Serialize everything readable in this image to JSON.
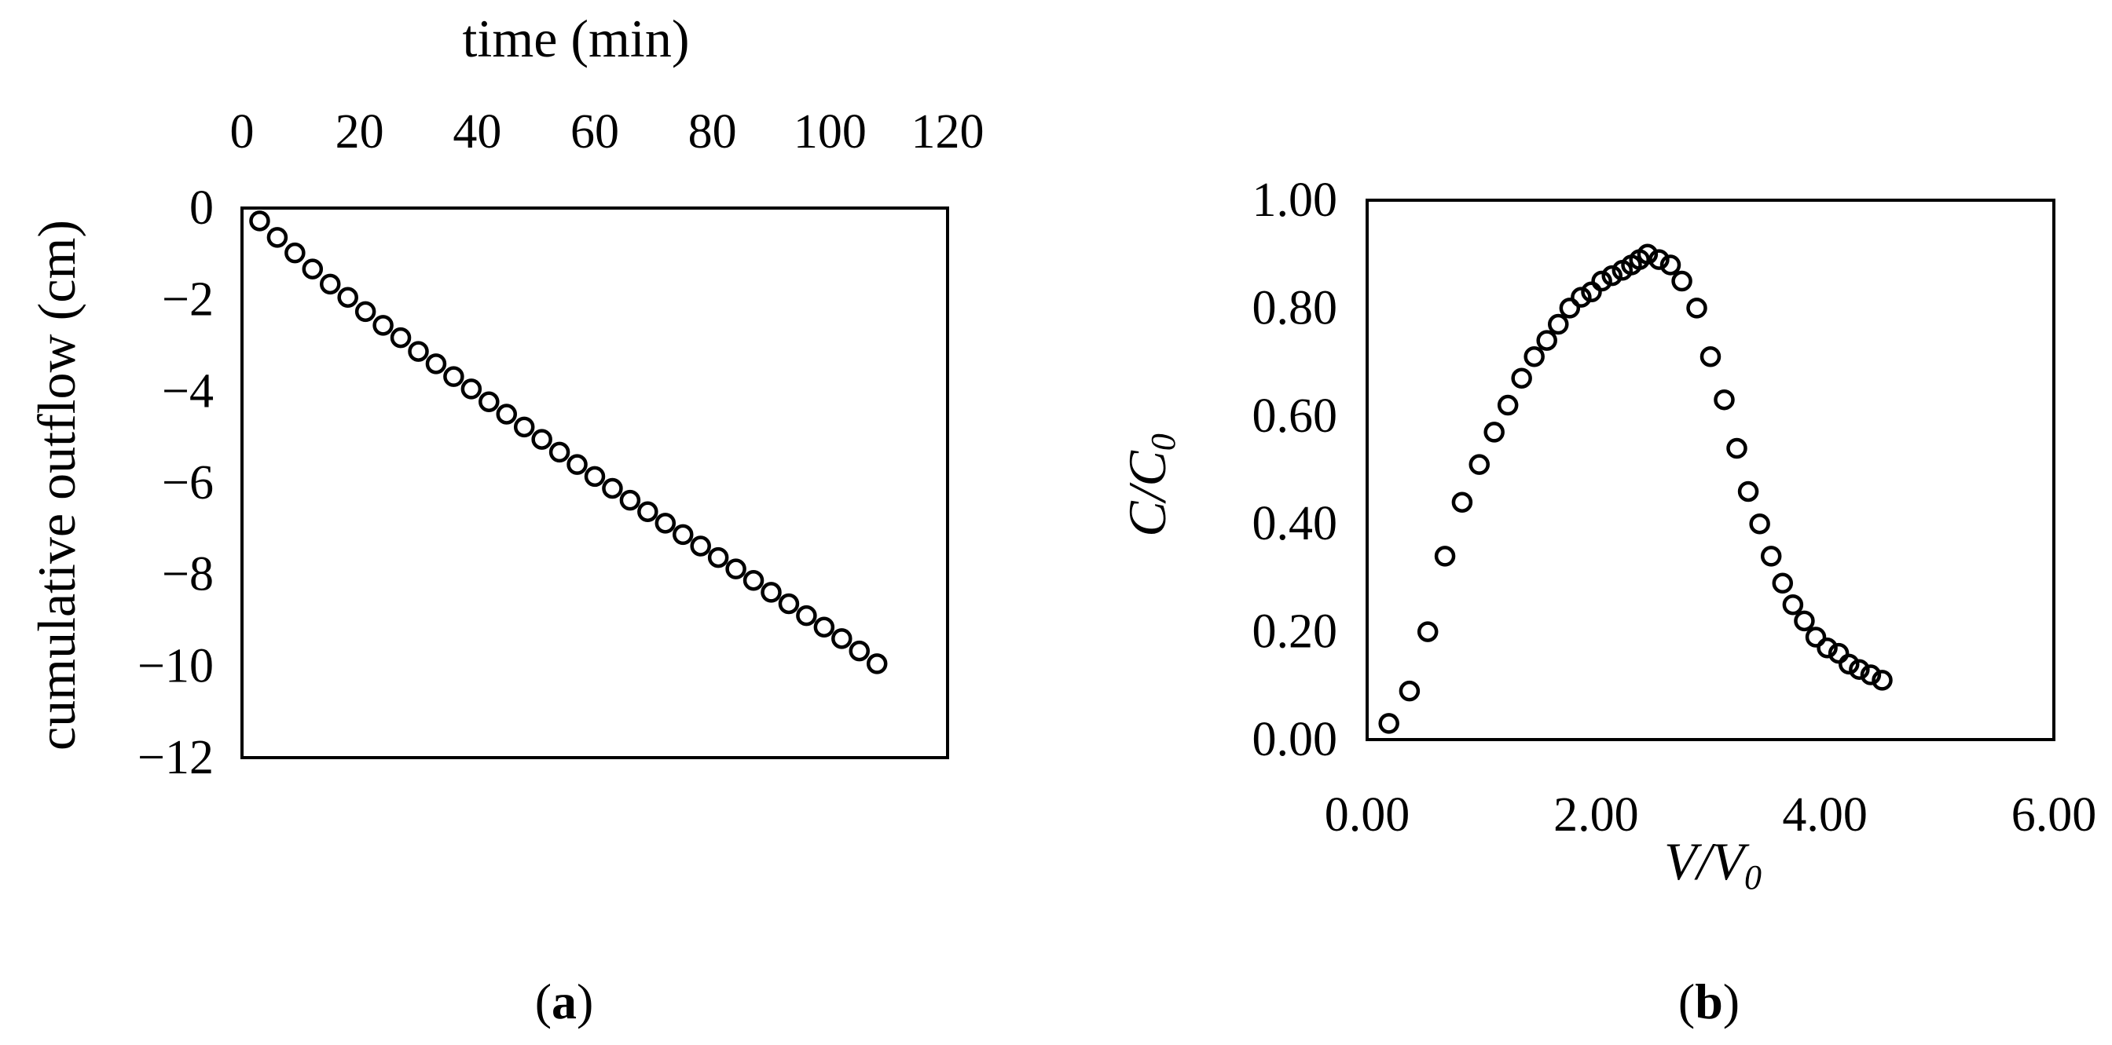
{
  "panels": [
    {
      "label_open": "(",
      "label_letter": "a",
      "label_close": ")"
    },
    {
      "label_open": "(",
      "label_letter": "b",
      "label_close": ")"
    }
  ],
  "chart_data": [
    {
      "type": "scatter",
      "panel": "a",
      "title": "",
      "xlabel": "time (min)",
      "ylabel": "cumulative outflow (cm)",
      "x_axis_position": "top",
      "xlim": [
        0,
        120
      ],
      "ylim": [
        -12,
        0
      ],
      "x_ticks": [
        "0",
        "20",
        "40",
        "60",
        "80",
        "100",
        "120"
      ],
      "y_ticks": [
        "0",
        "−2",
        "−4",
        "−6",
        "−8",
        "−10",
        "−12"
      ],
      "x_tick_values": [
        0,
        20,
        40,
        60,
        80,
        100,
        120
      ],
      "y_tick_values": [
        0,
        -2,
        -4,
        -6,
        -8,
        -10,
        -12
      ],
      "marker": "open-circle",
      "grid": false,
      "legend": "none",
      "series": [
        {
          "x": [
            3,
            6,
            9,
            12,
            15,
            18,
            21,
            24,
            27,
            30,
            33,
            36,
            39,
            42,
            45,
            48,
            51,
            54,
            57,
            60,
            63,
            66,
            69,
            72,
            75,
            78,
            81,
            84,
            87,
            90,
            93,
            96,
            99,
            102,
            105,
            108
          ],
          "y": [
            -0.28,
            -0.64,
            -0.98,
            -1.33,
            -1.66,
            -1.95,
            -2.26,
            -2.56,
            -2.83,
            -3.13,
            -3.4,
            -3.68,
            -3.95,
            -4.23,
            -4.5,
            -4.78,
            -5.05,
            -5.33,
            -5.6,
            -5.86,
            -6.12,
            -6.38,
            -6.63,
            -6.88,
            -7.13,
            -7.38,
            -7.63,
            -7.88,
            -8.13,
            -8.39,
            -8.64,
            -8.9,
            -9.15,
            -9.4,
            -9.67,
            -9.95
          ]
        }
      ]
    },
    {
      "type": "scatter",
      "panel": "b",
      "title": "",
      "xlabel_main": "V/V",
      "xlabel_sub": "0",
      "ylabel_main": "C/C",
      "ylabel_sub": "0",
      "xlim": [
        0,
        6
      ],
      "ylim": [
        0,
        1
      ],
      "x_ticks": [
        "0.00",
        "2.00",
        "4.00",
        "6.00"
      ],
      "y_ticks": [
        "0.00",
        "0.20",
        "0.40",
        "0.60",
        "0.80",
        "1.00"
      ],
      "x_tick_values": [
        0,
        2,
        4,
        6
      ],
      "y_tick_values": [
        0,
        0.2,
        0.4,
        0.6,
        0.8,
        1.0
      ],
      "marker": "open-circle",
      "grid": false,
      "legend": "none",
      "series": [
        {
          "x": [
            0.19,
            0.37,
            0.53,
            0.68,
            0.83,
            0.98,
            1.11,
            1.23,
            1.35,
            1.46,
            1.57,
            1.67,
            1.77,
            1.87,
            1.96,
            2.05,
            2.14,
            2.23,
            2.31,
            2.38,
            2.45,
            2.55,
            2.65,
            2.75,
            2.88,
            3.0,
            3.12,
            3.23,
            3.33,
            3.43,
            3.53,
            3.63,
            3.72,
            3.82,
            3.92,
            4.02,
            4.12,
            4.21,
            4.3,
            4.4,
            4.5
          ],
          "y": [
            0.03,
            0.09,
            0.2,
            0.34,
            0.44,
            0.51,
            0.57,
            0.62,
            0.67,
            0.71,
            0.74,
            0.77,
            0.8,
            0.82,
            0.83,
            0.85,
            0.86,
            0.87,
            0.88,
            0.89,
            0.9,
            0.89,
            0.88,
            0.85,
            0.8,
            0.71,
            0.63,
            0.54,
            0.46,
            0.4,
            0.34,
            0.29,
            0.25,
            0.22,
            0.19,
            0.17,
            0.16,
            0.14,
            0.13,
            0.12,
            0.11
          ]
        }
      ]
    }
  ]
}
